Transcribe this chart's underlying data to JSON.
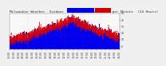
{
  "title": "Milwaukee Weather  Outdoor Temp  vs  Wind Chill  per Minute  (24 Hours)",
  "background_color": "#f0f0f0",
  "plot_bg_color": "#f8f8f8",
  "bar_color": "#0000ee",
  "line_color": "#dd0000",
  "legend_blue_color": "#0000dd",
  "legend_red_color": "#cc0000",
  "ylim_min": -5,
  "ylim_max": 50,
  "xlim_min": 0,
  "xlim_max": 1440,
  "tick_fontsize": 2.2,
  "title_fontsize": 3.2,
  "yticks": [
    0,
    10,
    20,
    30,
    40,
    50
  ],
  "ytick_labels": [
    "0",
    "10",
    "20",
    "30",
    "40",
    "50"
  ],
  "seed": 12345
}
